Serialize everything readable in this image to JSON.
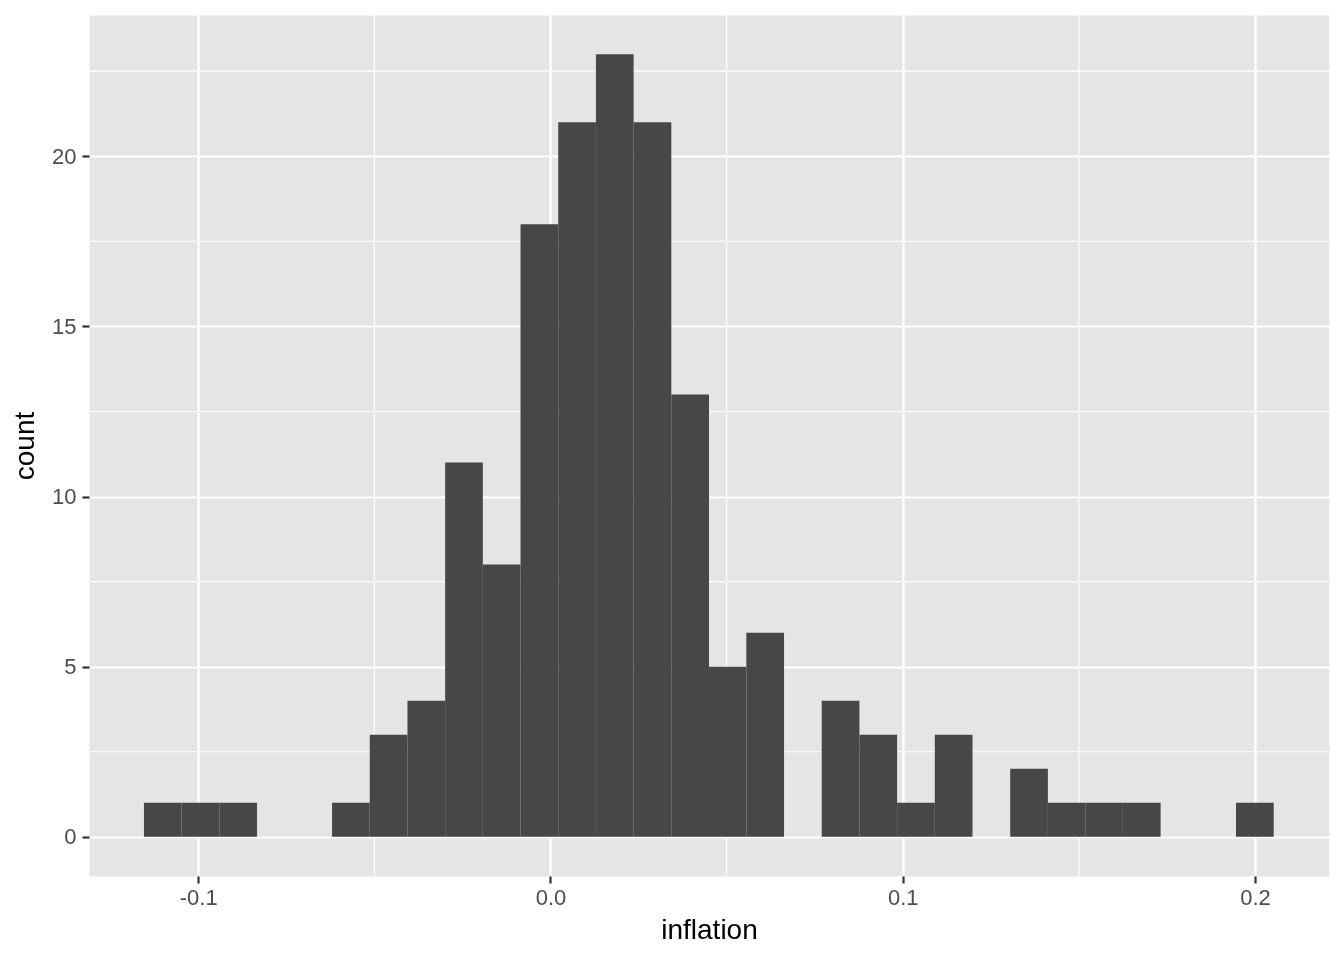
{
  "chart_data": {
    "type": "histogram",
    "xlabel": "inflation",
    "ylabel": "count",
    "bins": [
      -0.1154,
      -0.1047,
      -0.094,
      -0.0833,
      -0.0726,
      -0.062,
      -0.0513,
      -0.0406,
      -0.0299,
      -0.0192,
      -0.0085,
      0.0022,
      0.0129,
      0.0236,
      0.0343,
      0.045,
      0.0556,
      0.0663,
      0.077,
      0.0877,
      0.0984,
      0.1091,
      0.1198,
      0.1305,
      0.1412,
      0.1518,
      0.1625,
      0.1732,
      0.1839,
      0.1946,
      0.2053
    ],
    "values": [
      1,
      1,
      1,
      0,
      0,
      1,
      3,
      4,
      11,
      8,
      18,
      21,
      23,
      21,
      13,
      5,
      6,
      0,
      4,
      3,
      1,
      3,
      0,
      2,
      1,
      1,
      1,
      0,
      0,
      1
    ],
    "color": "#474747",
    "xlim": [
      -0.131,
      0.221
    ],
    "ylim": [
      -1.15,
      24.15
    ],
    "xticks": [
      -0.1,
      {
        "value": 0,
        "label": "0.0"
      },
      0.1,
      0.2
    ],
    "yticks": [
      0,
      5,
      10,
      15,
      20
    ],
    "grid": true
  }
}
